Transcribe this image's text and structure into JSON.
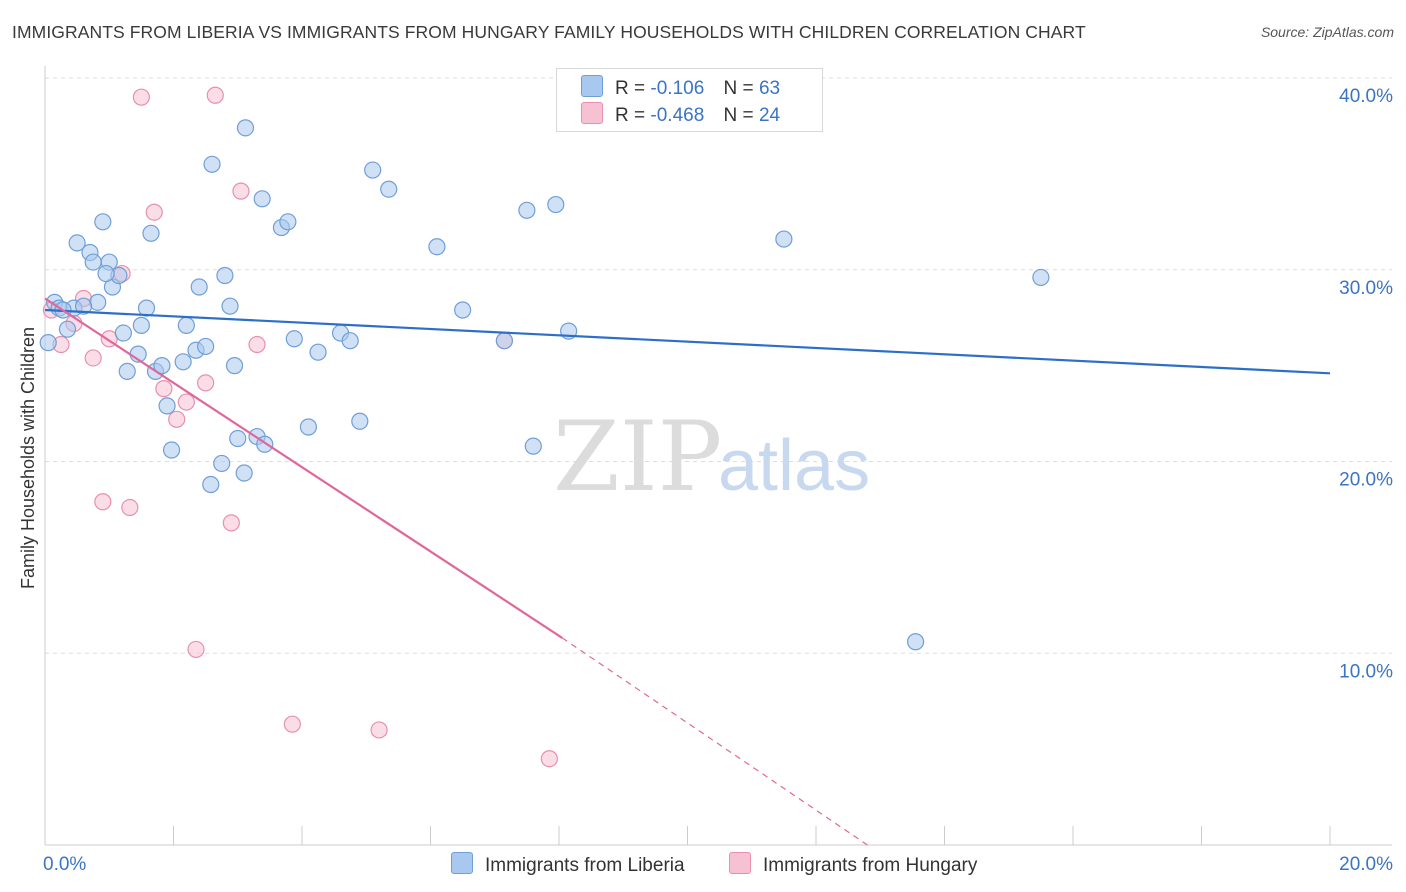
{
  "header": {
    "title": "IMMIGRANTS FROM LIBERIA VS IMMIGRANTS FROM HUNGARY FAMILY HOUSEHOLDS WITH CHILDREN CORRELATION CHART",
    "source": "Source: ZipAtlas.com"
  },
  "watermark": {
    "zip": "ZIP",
    "atlas": "atlas"
  },
  "legend": {
    "r_label": "R =",
    "n_label": "N =",
    "series": [
      {
        "name": "Immigrants from Liberia",
        "r": "-0.106",
        "n": "63"
      },
      {
        "name": "Immigrants from Hungary",
        "r": "-0.468",
        "n": "24"
      }
    ]
  },
  "colors": {
    "liberia_fill": "#a9c8ef",
    "liberia_stroke": "#6f9fd8",
    "liberia_line": "#2d6fc7",
    "hungary_fill": "#f6c1d3",
    "hungary_stroke": "#e98fb0",
    "hungary_line": "#e0679a",
    "tick_label": "#3b74c4",
    "grid": "#dddddd"
  },
  "chart_data": {
    "type": "scatter",
    "title": "IMMIGRANTS FROM LIBERIA VS IMMIGRANTS FROM HUNGARY FAMILY HOUSEHOLDS WITH CHILDREN CORRELATION CHART",
    "xlabel": "",
    "ylabel": "Family Households with Children",
    "xlim": [
      0,
      20
    ],
    "ylim": [
      0,
      40
    ],
    "x_tick_labels": [
      "0.0%",
      "20.0%"
    ],
    "y_ticks": [
      10,
      20,
      30,
      40
    ],
    "y_tick_labels": [
      "10.0%",
      "20.0%",
      "30.0%",
      "40.0%"
    ],
    "grid": true,
    "series": [
      {
        "name": "Immigrants from Liberia",
        "points": [
          [
            0.15,
            28.3
          ],
          [
            0.22,
            28.0
          ],
          [
            0.35,
            26.9
          ],
          [
            0.45,
            28.0
          ],
          [
            0.5,
            31.4
          ],
          [
            0.7,
            30.9
          ],
          [
            0.75,
            30.4
          ],
          [
            0.82,
            28.3
          ],
          [
            0.9,
            32.5
          ],
          [
            1.0,
            30.4
          ],
          [
            1.05,
            29.1
          ],
          [
            1.15,
            29.7
          ],
          [
            1.22,
            26.7
          ],
          [
            1.28,
            24.7
          ],
          [
            1.45,
            25.6
          ],
          [
            1.5,
            27.1
          ],
          [
            1.58,
            28.0
          ],
          [
            1.65,
            31.9
          ],
          [
            1.72,
            24.7
          ],
          [
            1.82,
            25.0
          ],
          [
            1.9,
            22.9
          ],
          [
            1.97,
            20.6
          ],
          [
            2.15,
            25.2
          ],
          [
            2.2,
            27.1
          ],
          [
            2.35,
            25.8
          ],
          [
            2.4,
            29.1
          ],
          [
            2.5,
            26.0
          ],
          [
            2.58,
            18.8
          ],
          [
            2.6,
            35.5
          ],
          [
            2.75,
            19.9
          ],
          [
            2.8,
            29.7
          ],
          [
            2.88,
            28.1
          ],
          [
            2.95,
            25.0
          ],
          [
            3.0,
            21.2
          ],
          [
            3.1,
            19.4
          ],
          [
            3.12,
            37.4
          ],
          [
            3.3,
            21.3
          ],
          [
            3.38,
            33.7
          ],
          [
            3.42,
            20.9
          ],
          [
            3.68,
            32.2
          ],
          [
            3.78,
            32.5
          ],
          [
            3.88,
            26.4
          ],
          [
            4.1,
            21.8
          ],
          [
            4.25,
            25.7
          ],
          [
            4.6,
            26.7
          ],
          [
            4.75,
            26.3
          ],
          [
            4.9,
            22.1
          ],
          [
            5.1,
            35.2
          ],
          [
            5.35,
            34.2
          ],
          [
            6.1,
            31.2
          ],
          [
            6.5,
            27.9
          ],
          [
            7.15,
            26.3
          ],
          [
            7.5,
            33.1
          ],
          [
            7.6,
            20.8
          ],
          [
            7.95,
            33.4
          ],
          [
            8.15,
            26.8
          ],
          [
            11.5,
            31.6
          ],
          [
            13.55,
            10.6
          ],
          [
            15.5,
            29.6
          ],
          [
            0.05,
            26.2
          ],
          [
            0.28,
            27.9
          ],
          [
            0.6,
            28.1
          ],
          [
            0.95,
            29.8
          ]
        ]
      },
      {
        "name": "Immigrants from Hungary",
        "points": [
          [
            0.1,
            27.9
          ],
          [
            0.25,
            26.1
          ],
          [
            0.45,
            27.2
          ],
          [
            0.6,
            28.5
          ],
          [
            0.75,
            25.4
          ],
          [
            0.9,
            17.9
          ],
          [
            1.0,
            26.4
          ],
          [
            1.2,
            29.8
          ],
          [
            1.32,
            17.6
          ],
          [
            1.5,
            39.0
          ],
          [
            1.7,
            33.0
          ],
          [
            1.85,
            23.8
          ],
          [
            2.05,
            22.2
          ],
          [
            2.2,
            23.1
          ],
          [
            2.35,
            10.2
          ],
          [
            2.5,
            24.1
          ],
          [
            2.65,
            39.1
          ],
          [
            2.9,
            16.8
          ],
          [
            3.05,
            34.1
          ],
          [
            3.3,
            26.1
          ],
          [
            3.85,
            6.3
          ],
          [
            5.2,
            6.0
          ],
          [
            7.15,
            26.3
          ],
          [
            7.85,
            4.5
          ]
        ]
      }
    ],
    "trendlines": [
      {
        "series": "Immigrants from Liberia",
        "from": [
          0,
          27.9
        ],
        "to": [
          20,
          24.6
        ]
      },
      {
        "series": "Immigrants from Hungary",
        "from": [
          0,
          28.5
        ],
        "to": [
          8.05,
          10.8
        ],
        "dashed_to": [
          12.8,
          0
        ]
      }
    ]
  }
}
